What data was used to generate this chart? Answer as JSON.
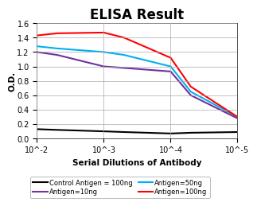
{
  "title": "ELISA Result",
  "xlabel": "Serial Dilutions of Antibody",
  "ylabel": "O.D.",
  "ylim": [
    0,
    1.6
  ],
  "yticks": [
    0,
    0.2,
    0.4,
    0.6,
    0.8,
    1.0,
    1.2,
    1.4,
    1.6
  ],
  "xtick_positions": [
    0.01,
    0.001,
    0.0001,
    1e-05
  ],
  "xtick_labels": [
    "10^-2",
    "10^-3",
    "10^-4",
    "10^-5"
  ],
  "series": [
    {
      "label": "Control Antigen = 100ng",
      "color": "#000000",
      "x": [
        0.01,
        0.005,
        0.001,
        0.0005,
        0.0001,
        5e-05,
        1e-05
      ],
      "y": [
        0.13,
        0.12,
        0.1,
        0.09,
        0.07,
        0.08,
        0.09
      ]
    },
    {
      "label": "Antigen=10ng",
      "color": "#7030A0",
      "x": [
        0.01,
        0.005,
        0.001,
        0.0005,
        0.0001,
        5e-05,
        1e-05
      ],
      "y": [
        1.2,
        1.16,
        1.0,
        0.98,
        0.93,
        0.6,
        0.28
      ]
    },
    {
      "label": "Antigen=50ng",
      "color": "#00B0F0",
      "x": [
        0.01,
        0.005,
        0.001,
        0.0005,
        0.0001,
        5e-05,
        1e-05
      ],
      "y": [
        1.28,
        1.25,
        1.2,
        1.16,
        1.0,
        0.65,
        0.3
      ]
    },
    {
      "label": "Antigen=100ng",
      "color": "#FF0000",
      "x": [
        0.01,
        0.005,
        0.001,
        0.0005,
        0.0001,
        5e-05,
        1e-05
      ],
      "y": [
        1.43,
        1.46,
        1.47,
        1.4,
        1.12,
        0.72,
        0.3
      ]
    }
  ],
  "legend_order": [
    0,
    1,
    2,
    3
  ],
  "background_color": "#FFFFFF",
  "grid_color": "#AAAAAA",
  "title_fontsize": 12,
  "label_fontsize": 7.5,
  "tick_fontsize": 7,
  "legend_fontsize": 6,
  "linewidth": 1.5
}
